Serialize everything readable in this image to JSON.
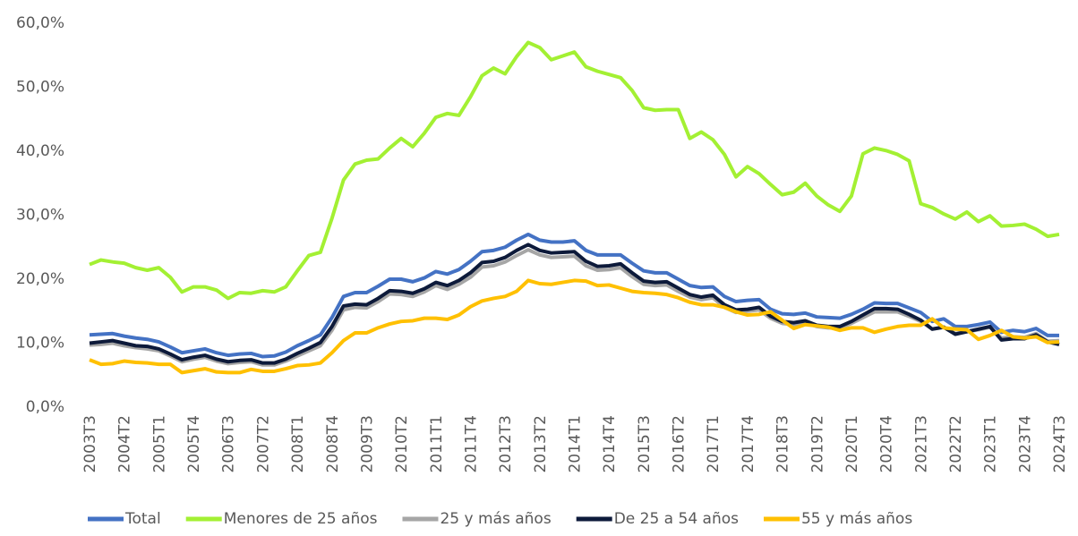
{
  "chart_data": {
    "type": "line",
    "categories": [
      "2003T3",
      null,
      null,
      "2004T2",
      null,
      null,
      "2005T1",
      null,
      null,
      "2005T4",
      null,
      null,
      "2006T3",
      null,
      null,
      "2007T2",
      null,
      null,
      "2008T1",
      null,
      null,
      "2008T4",
      null,
      null,
      "2009T3",
      null,
      null,
      "2010T2",
      null,
      null,
      "2011T1",
      null,
      null,
      "2011T4",
      null,
      null,
      "2012T3",
      null,
      null,
      "2013T2",
      null,
      null,
      "2014T1",
      null,
      null,
      "2014T4",
      null,
      null,
      "2015T3",
      null,
      null,
      "2016T2",
      null,
      null,
      "2017T1",
      null,
      null,
      "2017T4",
      null,
      null,
      "2018T3",
      null,
      null,
      "2019T2",
      null,
      null,
      "2020T1",
      null,
      null,
      "2020T4",
      null,
      null,
      "2021T3",
      null,
      null,
      "2022T2",
      null,
      null,
      "2023T1",
      null,
      null,
      "2023T4",
      null,
      null,
      "2024T3"
    ],
    "series": [
      {
        "name": "Total",
        "color": "#4472c4",
        "values": [
          11.3,
          11.4,
          11.5,
          11.1,
          10.8,
          10.6,
          10.2,
          9.4,
          8.5,
          8.8,
          9.1,
          8.5,
          8.1,
          8.3,
          8.4,
          7.9,
          8.0,
          8.6,
          9.6,
          10.4,
          11.3,
          14.0,
          17.3,
          17.9,
          17.9,
          18.9,
          20.0,
          20.0,
          19.6,
          20.2,
          21.2,
          20.8,
          21.5,
          22.8,
          24.3,
          24.5,
          25.0,
          26.1,
          27.0,
          26.1,
          25.8,
          25.8,
          26.0,
          24.5,
          23.8,
          23.8,
          23.8,
          22.5,
          21.3,
          21.0,
          21.0,
          20.0,
          19.0,
          18.7,
          18.8,
          17.3,
          16.5,
          16.7,
          16.8,
          15.3,
          14.6,
          14.5,
          14.7,
          14.1,
          14.0,
          13.9,
          14.5,
          15.3,
          16.3,
          16.2,
          16.2,
          15.5,
          14.8,
          13.4,
          13.8,
          12.6,
          12.6,
          12.9,
          13.3,
          11.7,
          12.0,
          11.8,
          12.3,
          11.2,
          11.2
        ]
      },
      {
        "name": "Menores de 25 años",
        "color": "#a3f033",
        "values": [
          22.3,
          23.0,
          22.7,
          22.5,
          21.8,
          21.4,
          21.8,
          20.3,
          18.0,
          18.8,
          18.8,
          18.3,
          17.0,
          17.9,
          17.8,
          18.2,
          18.0,
          18.8,
          21.3,
          23.7,
          24.2,
          29.5,
          35.5,
          38.0,
          38.6,
          38.8,
          40.5,
          42.0,
          40.7,
          42.8,
          45.3,
          45.9,
          45.6,
          48.5,
          51.8,
          53.0,
          52.1,
          54.8,
          57.0,
          56.2,
          54.3,
          54.9,
          55.5,
          53.2,
          52.5,
          52.0,
          51.5,
          49.5,
          46.8,
          46.4,
          46.5,
          46.5,
          42.0,
          43.0,
          41.8,
          39.5,
          36.0,
          37.6,
          36.5,
          34.8,
          33.2,
          33.6,
          35.0,
          33.0,
          31.6,
          30.6,
          33.0,
          39.6,
          40.5,
          40.1,
          39.5,
          38.5,
          31.8,
          31.2,
          30.2,
          29.4,
          30.5,
          29.0,
          29.9,
          28.3,
          28.4,
          28.6,
          27.8,
          26.7,
          27.0
        ]
      },
      {
        "name": "25 y más años",
        "color": "#a6a6a6",
        "values": [
          9.7,
          9.8,
          10.0,
          9.6,
          9.3,
          9.1,
          8.8,
          8.0,
          7.1,
          7.5,
          7.8,
          7.2,
          6.8,
          7.0,
          7.1,
          6.6,
          6.6,
          7.2,
          8.0,
          8.8,
          9.6,
          12.0,
          15.2,
          15.6,
          15.5,
          16.5,
          17.7,
          17.6,
          17.3,
          18.0,
          19.0,
          18.4,
          19.2,
          20.3,
          21.9,
          22.1,
          22.7,
          23.7,
          24.6,
          23.8,
          23.4,
          23.5,
          23.6,
          22.1,
          21.4,
          21.5,
          21.8,
          20.4,
          19.2,
          19.0,
          19.1,
          18.1,
          17.2,
          16.8,
          17.1,
          15.6,
          14.8,
          15.0,
          15.2,
          13.9,
          13.1,
          12.9,
          13.2,
          12.6,
          12.4,
          12.4,
          13.1,
          14.0,
          14.9,
          14.9,
          14.9,
          14.2,
          13.4,
          12.2,
          12.5,
          11.5,
          11.8,
          12.1,
          12.5,
          10.8,
          11.0,
          10.9,
          11.5,
          10.3,
          10.4
        ]
      },
      {
        "name": "De 25 a 54 años",
        "color": "#0d1a3a",
        "values": [
          10.0,
          10.2,
          10.4,
          10.0,
          9.6,
          9.5,
          9.1,
          8.3,
          7.4,
          7.8,
          8.1,
          7.5,
          7.1,
          7.3,
          7.4,
          6.9,
          6.9,
          7.5,
          8.4,
          9.2,
          10.1,
          12.6,
          15.8,
          16.1,
          16.0,
          17.0,
          18.2,
          18.1,
          17.8,
          18.5,
          19.5,
          19.0,
          19.8,
          21.0,
          22.6,
          22.8,
          23.4,
          24.5,
          25.4,
          24.5,
          24.1,
          24.2,
          24.3,
          22.8,
          22.0,
          22.1,
          22.4,
          21.0,
          19.7,
          19.5,
          19.6,
          18.6,
          17.6,
          17.2,
          17.5,
          16.0,
          15.2,
          15.3,
          15.6,
          14.2,
          13.4,
          13.2,
          13.5,
          12.8,
          12.6,
          12.6,
          13.4,
          14.4,
          15.4,
          15.4,
          15.3,
          14.5,
          13.6,
          12.2,
          12.5,
          11.4,
          11.8,
          12.2,
          12.6,
          10.5,
          10.7,
          10.7,
          11.3,
          10.2,
          9.8
        ]
      },
      {
        "name": "55 y más años",
        "color": "#ffc000",
        "values": [
          7.4,
          6.7,
          6.8,
          7.2,
          7.0,
          6.9,
          6.7,
          6.7,
          5.4,
          5.7,
          6.0,
          5.5,
          5.4,
          5.4,
          5.9,
          5.6,
          5.6,
          6.0,
          6.5,
          6.6,
          6.9,
          8.5,
          10.4,
          11.6,
          11.6,
          12.4,
          13.0,
          13.4,
          13.5,
          13.9,
          13.9,
          13.7,
          14.4,
          15.7,
          16.6,
          17.0,
          17.3,
          18.1,
          19.8,
          19.3,
          19.2,
          19.5,
          19.8,
          19.7,
          19.0,
          19.1,
          18.6,
          18.1,
          17.9,
          17.8,
          17.6,
          17.1,
          16.4,
          16.0,
          16.0,
          15.6,
          14.9,
          14.4,
          14.5,
          14.9,
          13.6,
          12.3,
          12.9,
          12.7,
          12.5,
          12.0,
          12.4,
          12.4,
          11.7,
          12.2,
          12.6,
          12.8,
          12.8,
          13.8,
          12.4,
          12.2,
          12.1,
          10.6,
          11.2,
          12.0,
          11.0,
          10.8,
          11.0,
          10.1,
          10.2
        ]
      }
    ],
    "ylim": [
      0,
      60
    ],
    "yticks": [
      {
        "value": 0,
        "label": "0,0%"
      },
      {
        "value": 10,
        "label": "10,0%"
      },
      {
        "value": 20,
        "label": "20,0%"
      },
      {
        "value": 30,
        "label": "30,0%"
      },
      {
        "value": 40,
        "label": "40,0%"
      },
      {
        "value": 50,
        "label": "50,0%"
      },
      {
        "value": 60,
        "label": "60,0%"
      }
    ],
    "grid": false,
    "legend": "bottom"
  }
}
